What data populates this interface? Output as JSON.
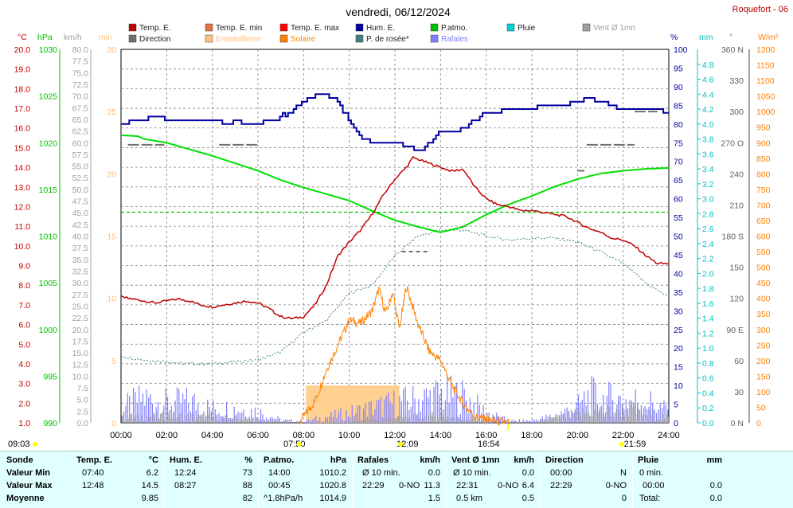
{
  "title": "vendredi, 06/12/2024",
  "site": "Roquefort - 06",
  "colors": {
    "temp": "#c00000",
    "temp_min": "#e87040",
    "temp_max": "#ff0000",
    "hum": "#0000a0",
    "patm": "#00e000",
    "pluie": "#00e0e0",
    "vent": "#a0a0a0",
    "direction": "#707070",
    "ensoleillement": "#ffd090",
    "solaire": "#ff8000",
    "rosee": "#408080",
    "rafales": "#8080ff",
    "grid": "#808080"
  },
  "legend": [
    {
      "label": "Temp. E.",
      "color": "#c00000"
    },
    {
      "label": "Temp. E. min",
      "color": "#e87040"
    },
    {
      "label": "Temp. E. max",
      "color": "#ff0000"
    },
    {
      "label": "Hum. E.",
      "color": "#0000a0"
    },
    {
      "label": "P.atmo.",
      "color": "#00c000"
    },
    {
      "label": "Pluie",
      "color": "#00d0d0"
    },
    {
      "label": "Vent Ø 1mn",
      "color": "#a0a0a0"
    },
    {
      "label": "Direction",
      "color": "#707070"
    },
    {
      "label": "Ensoleilleme",
      "color": "#ffc080"
    },
    {
      "label": "Solaire",
      "color": "#ff8000"
    },
    {
      "label": "P. de rosée*",
      "color": "#408080"
    },
    {
      "label": "Rafales",
      "color": "#8080ff"
    }
  ],
  "axes": {
    "temp": {
      "unit": "°C",
      "ticks": [
        "1.0",
        "2.0",
        "3.0",
        "4.0",
        "5.0",
        "6.0",
        "7.0",
        "8.0",
        "9.0",
        "10.0",
        "11.0",
        "12.0",
        "13.0",
        "14.0",
        "15.0",
        "16.0",
        "17.0",
        "18.0",
        "19.0",
        "20.0"
      ]
    },
    "pressure": {
      "unit": "hPa",
      "ticks": [
        "990",
        "995",
        "1000",
        "1005",
        "1010",
        "1015",
        "1020",
        "1025",
        "1030"
      ]
    },
    "wind": {
      "unit": "km/h",
      "ticks": [
        "0.0",
        "2.5",
        "5.0",
        "7.5",
        "10.0",
        "12.5",
        "15.0",
        "17.5",
        "20.0",
        "22.5",
        "25.0",
        "27.5",
        "30.0",
        "32.5",
        "35.0",
        "37.5",
        "40.0",
        "42.5",
        "45.0",
        "47.5",
        "50.0",
        "52.5",
        "55.0",
        "57.5",
        "60.0",
        "62.5",
        "65.0",
        "67.5",
        "70.0",
        "72.5",
        "75.0",
        "77.5",
        "80.0"
      ]
    },
    "minutes": {
      "unit": "min",
      "ticks": [
        "0",
        "5",
        "10",
        "15",
        "20",
        "25",
        "30"
      ]
    },
    "humidity": {
      "unit": "%",
      "ticks": [
        "0",
        "5",
        "10",
        "15",
        "20",
        "25",
        "30",
        "35",
        "40",
        "45",
        "50",
        "55",
        "60",
        "65",
        "70",
        "75",
        "80",
        "85",
        "90",
        "95",
        "100"
      ]
    },
    "rain": {
      "unit": "mm",
      "ticks": [
        "0.0",
        "0.2",
        "0.4",
        "0.6",
        "0.8",
        "1.0",
        "1.2",
        "1.4",
        "1.6",
        "1.8",
        "2.0",
        "2.2",
        "2.4",
        "2.6",
        "2.8",
        "3.0",
        "3.2",
        "3.4",
        "3.6",
        "3.8",
        "4.0",
        "4.2",
        "4.4",
        "4.6",
        "4.8"
      ]
    },
    "direction": {
      "unit": "°",
      "ticks": [
        "0 N",
        "30",
        "60",
        "90 E",
        "120",
        "150",
        "180 S",
        "210",
        "240",
        "270 O",
        "300",
        "330",
        "360 N"
      ]
    },
    "solar": {
      "unit": "W/m²",
      "ticks": [
        "0",
        "50",
        "100",
        "150",
        "200",
        "250",
        "300",
        "350",
        "400",
        "450",
        "500",
        "550",
        "600",
        "650",
        "700",
        "750",
        "800",
        "850",
        "900",
        "950",
        "1000",
        "1050",
        "1100",
        "1150",
        "1200"
      ]
    },
    "x_ticks": [
      "00:00",
      "02:00",
      "04:00",
      "06:00",
      "08:00",
      "10:00",
      "12:00",
      "14:00",
      "16:00",
      "18:00",
      "20:00",
      "22:00",
      "24:00"
    ]
  },
  "sun_markers": [
    {
      "label": "09:03"
    },
    {
      "label": "07:50"
    },
    {
      "label": "12:09"
    },
    {
      "label": "16:54"
    },
    {
      "label": "-21:59"
    }
  ],
  "chart_data": {
    "type": "line",
    "x_unit": "hour",
    "xlim": [
      0,
      24
    ],
    "series": [
      {
        "name": "Temp. E.",
        "unit": "°C",
        "x": [
          0,
          0.5,
          1,
          1.5,
          2,
          2.5,
          3,
          3.5,
          4,
          4.5,
          5,
          5.5,
          6,
          6.5,
          7,
          7.5,
          8,
          8.5,
          9,
          9.5,
          10,
          10.5,
          11,
          11.5,
          12,
          12.5,
          12.8,
          13.5,
          14,
          14.5,
          15,
          15.5,
          16,
          16.5,
          17,
          17.5,
          18,
          18.5,
          19,
          19.5,
          20,
          20.5,
          21,
          21.5,
          22,
          22.5,
          23,
          23.5,
          24
        ],
        "y": [
          7.4,
          7.3,
          7.2,
          7.1,
          7.2,
          7.3,
          7.2,
          7.0,
          6.9,
          7.0,
          7.1,
          7.2,
          7.1,
          6.8,
          6.4,
          6.3,
          6.4,
          7.0,
          8.0,
          9.5,
          10.2,
          10.8,
          11.6,
          12.6,
          13.4,
          14.0,
          14.5,
          14.2,
          14.0,
          13.8,
          13.9,
          13.0,
          12.4,
          12.1,
          12.0,
          11.8,
          11.8,
          11.7,
          11.6,
          11.5,
          11.2,
          10.9,
          10.7,
          10.4,
          10.3,
          10.0,
          9.5,
          9.1,
          9.1
        ]
      },
      {
        "name": "Hum. E.",
        "unit": "%",
        "x": [
          0,
          0.5,
          1,
          1.5,
          2,
          2.5,
          3,
          3.5,
          4,
          4.5,
          5,
          5.5,
          6,
          6.5,
          7,
          7.5,
          8,
          8.5,
          9,
          9.5,
          10,
          10.5,
          11,
          11.5,
          12,
          12.5,
          13,
          13.5,
          14,
          14.5,
          15,
          15.5,
          16,
          16.5,
          17,
          17.5,
          18,
          18.5,
          19,
          19.5,
          20,
          20.5,
          21,
          21.5,
          22,
          22.5,
          23,
          23.5,
          24
        ],
        "y": [
          80,
          81,
          81,
          82,
          81,
          81,
          81,
          81,
          81,
          80,
          81,
          80,
          80,
          81,
          82,
          84,
          86,
          88,
          88,
          86,
          81,
          76,
          75,
          75,
          75,
          74,
          73,
          75,
          78,
          78,
          79,
          81,
          83,
          83,
          84,
          84,
          84,
          85,
          85,
          85,
          86,
          87,
          86,
          85,
          84,
          84,
          84,
          84,
          83
        ]
      },
      {
        "name": "P.atmo.",
        "unit": "hPa",
        "x": [
          0,
          0.75,
          1,
          2,
          3,
          4,
          5,
          6,
          7,
          8,
          9,
          10,
          11,
          12,
          13,
          14,
          15,
          16,
          17,
          18,
          19,
          20,
          21,
          22,
          23,
          24
        ],
        "y": [
          1020.8,
          1020.7,
          1020.4,
          1020.0,
          1019.3,
          1018.6,
          1017.8,
          1017.0,
          1016.0,
          1015.2,
          1014.5,
          1013.8,
          1012.7,
          1011.7,
          1011.0,
          1010.4,
          1011.0,
          1012.3,
          1013.4,
          1014.3,
          1015.3,
          1016.1,
          1016.7,
          1017.0,
          1017.2,
          1017.3
        ]
      },
      {
        "name": "P. de rosée*",
        "unit": "°C",
        "x": [
          0,
          1,
          2,
          3,
          4,
          5,
          6,
          7,
          8,
          9,
          10,
          11,
          12,
          13,
          14,
          15,
          16,
          17,
          18,
          19,
          20,
          21,
          22,
          23,
          24
        ],
        "y": [
          4.4,
          4.2,
          4.1,
          4.0,
          4.0,
          4.1,
          4.2,
          4.6,
          5.6,
          6.2,
          7.6,
          8.0,
          9.5,
          10.5,
          10.8,
          10.8,
          10.5,
          10.3,
          10.4,
          10.4,
          10.2,
          9.7,
          9.1,
          8.1,
          7.4
        ]
      },
      {
        "name": "Solaire",
        "unit": "W/m²",
        "x": [
          7.8,
          8.5,
          9,
          9.5,
          10,
          10.5,
          11,
          11.3,
          11.6,
          11.9,
          12.2,
          12.5,
          13,
          13.5,
          14,
          14.5,
          15,
          15.5,
          16,
          16.5,
          17
        ],
        "y": [
          0,
          70,
          170,
          250,
          330,
          320,
          360,
          430,
          350,
          420,
          300,
          440,
          320,
          230,
          200,
          120,
          60,
          20,
          10,
          5,
          0
        ]
      },
      {
        "name": "Rafales",
        "unit": "km/h",
        "x": [
          0,
          1,
          2,
          3,
          4,
          5,
          6,
          7,
          8,
          9,
          10,
          11,
          12,
          13,
          14,
          15,
          16,
          17,
          18,
          19,
          20,
          20.5,
          21,
          22,
          23,
          24
        ],
        "y": [
          3.0,
          5.2,
          4.1,
          4.5,
          3.0,
          3.0,
          2.4,
          0.6,
          0.3,
          1.2,
          2.1,
          3.1,
          4.2,
          4.9,
          6.0,
          5.5,
          2.2,
          0.4,
          0.5,
          1.5,
          3.3,
          5.8,
          5.1,
          4.8,
          4.7,
          2.5
        ]
      },
      {
        "name": "Vent Ø 1mn",
        "unit": "km/h",
        "x": [
          0,
          2,
          4,
          6,
          8,
          10,
          12,
          14,
          16,
          18,
          20,
          22,
          24
        ],
        "y": [
          1.0,
          1.5,
          1.2,
          0.6,
          0.0,
          0.2,
          1.0,
          1.5,
          0.4,
          0.0,
          2.0,
          2.8,
          1.0
        ]
      }
    ],
    "pluie_constant": 2.82,
    "direction_segments": [
      {
        "x0": 0.3,
        "x1": 1.9,
        "deg": 268
      },
      {
        "x0": 4.3,
        "x1": 6.0,
        "deg": 268
      },
      {
        "x0": 12.3,
        "x1": 13.5,
        "deg": 165
      },
      {
        "x0": 20.0,
        "x1": 20.3,
        "deg": 243
      },
      {
        "x0": 20.4,
        "x1": 22.5,
        "deg": 268
      },
      {
        "x0": 22.5,
        "x1": 23.5,
        "deg": 300
      }
    ],
    "sunshine_band": {
      "x0": 8.1,
      "x1": 12.2,
      "level": 3
    }
  },
  "table": {
    "sonde": {
      "header": "Sonde",
      "rows": [
        "Valeur Min",
        "Valeur Max",
        "Moyenne"
      ]
    },
    "temp": {
      "header": "Temp. E.",
      "unit": "°C",
      "min_time": "07:40",
      "min_val": "6.2",
      "max_time": "12:48",
      "max_val": "14.5",
      "avg": "9.85"
    },
    "hum": {
      "header": "Hum. E.",
      "unit": "%",
      "min_time": "12:24",
      "min_val": "73",
      "max_time": "08:27",
      "max_val": "88",
      "avg": "82"
    },
    "patm": {
      "header": "P.atmo.",
      "unit": "hPa",
      "min_time": "14:00",
      "min_val": "1010.2",
      "max_time": "00:45",
      "max_val": "1020.8",
      "avg_label": "^1.8hPa/h",
      "avg": "1014.9"
    },
    "rafales": {
      "header": "Rafales",
      "unit": "km/h",
      "r1_label": "Ø 10 min.",
      "r1_val": "0.0",
      "r2_time": "22:29",
      "r2_dir": "0-NO",
      "r2_val": "11.3",
      "avg": "1.5"
    },
    "vent": {
      "header": "Vent Ø 1mn",
      "unit": "km/h",
      "r1_label": "Ø 10 min.",
      "r1_val": "0.0",
      "r2_time": "22:31",
      "r2_dir": "0-NO",
      "r2_val": "6.4",
      "r3_label": "0.5 km",
      "avg": "0.5"
    },
    "direction": {
      "header": "Direction",
      "r1_time": "00:00",
      "r1_val": "N",
      "r2_time": "22:29",
      "r2_val": "0-NO",
      "avg": "0"
    },
    "pluie": {
      "header": "Pluie",
      "unit": "mm",
      "r1_label": "0 min.",
      "r2_time": "00:00",
      "r2_val": "0.0",
      "r3_label": "Total:",
      "r3_val": "0.0"
    }
  }
}
